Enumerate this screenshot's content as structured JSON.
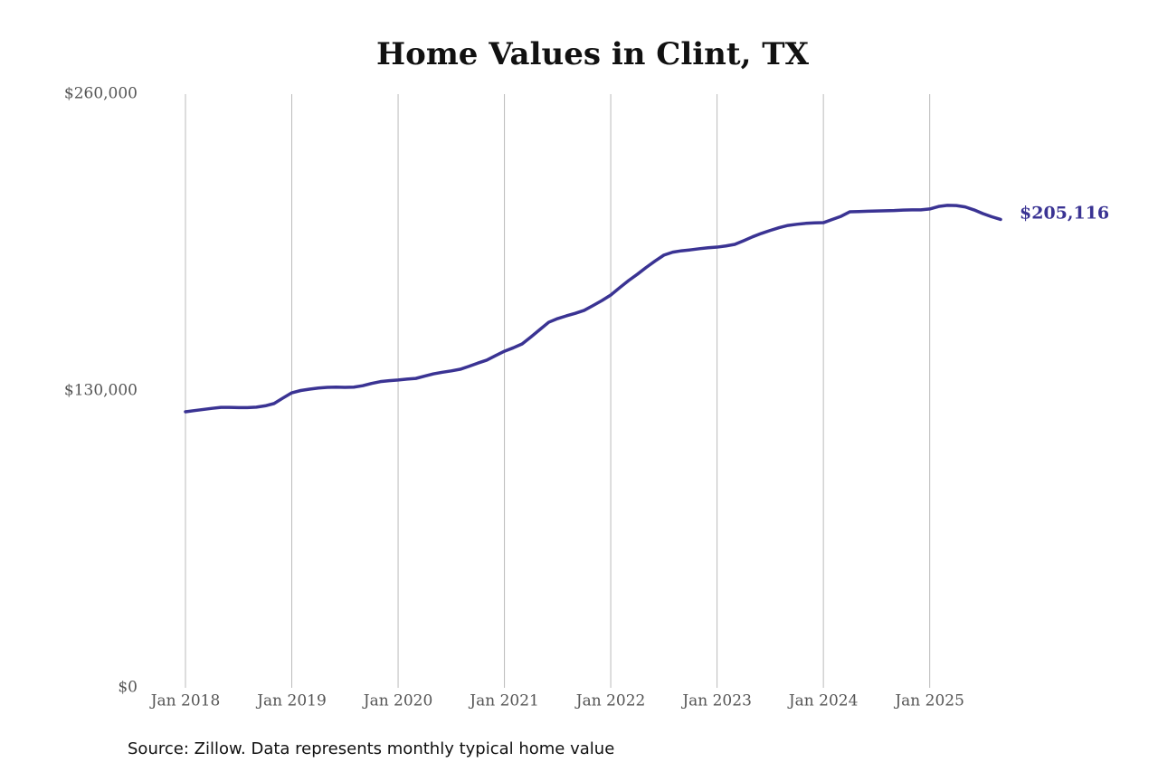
{
  "chart_data": {
    "type": "line",
    "title": "Home Values in Clint, TX",
    "source": "Source: Zillow. Data represents monthly typical home value",
    "x": [
      "2018-01",
      "2018-02",
      "2018-03",
      "2018-04",
      "2018-05",
      "2018-06",
      "2018-07",
      "2018-08",
      "2018-09",
      "2018-10",
      "2018-11",
      "2018-12",
      "2019-01",
      "2019-02",
      "2019-03",
      "2019-04",
      "2019-05",
      "2019-06",
      "2019-07",
      "2019-08",
      "2019-09",
      "2019-10",
      "2019-11",
      "2019-12",
      "2020-01",
      "2020-02",
      "2020-03",
      "2020-04",
      "2020-05",
      "2020-06",
      "2020-07",
      "2020-08",
      "2020-09",
      "2020-10",
      "2020-11",
      "2020-12",
      "2021-01",
      "2021-02",
      "2021-03",
      "2021-04",
      "2021-05",
      "2021-06",
      "2021-07",
      "2021-08",
      "2021-09",
      "2021-10",
      "2021-11",
      "2021-12",
      "2022-01",
      "2022-02",
      "2022-03",
      "2022-04",
      "2022-05",
      "2022-06",
      "2022-07",
      "2022-08",
      "2022-09",
      "2022-10",
      "2022-11",
      "2022-12",
      "2023-01",
      "2023-02",
      "2023-03",
      "2023-04",
      "2023-05",
      "2023-06",
      "2023-07",
      "2023-08",
      "2023-09",
      "2023-10",
      "2023-11",
      "2023-12",
      "2024-01",
      "2024-02",
      "2024-03",
      "2024-04",
      "2024-05",
      "2024-06",
      "2024-07",
      "2024-08",
      "2024-09",
      "2024-10",
      "2024-11",
      "2024-12",
      "2025-01",
      "2025-02",
      "2025-03",
      "2025-04",
      "2025-05",
      "2025-06",
      "2025-07",
      "2025-08",
      "2025-09"
    ],
    "series": [
      {
        "color": "#3a3393",
        "values": [
          120900,
          121400,
          121900,
          122400,
          122800,
          122800,
          122700,
          122700,
          122900,
          123500,
          124500,
          126900,
          129200,
          130200,
          130800,
          131300,
          131600,
          131700,
          131600,
          131700,
          132300,
          133300,
          134100,
          134500,
          134800,
          135200,
          135500,
          136500,
          137500,
          138200,
          138800,
          139500,
          140800,
          142200,
          143500,
          145500,
          147400,
          148900,
          150600,
          153700,
          156900,
          160100,
          161700,
          162900,
          164000,
          165300,
          167400,
          169600,
          172000,
          175200,
          178300,
          181100,
          184100,
          186900,
          189500,
          190800,
          191400,
          191800,
          192300,
          192700,
          193000,
          193500,
          194200,
          195800,
          197500,
          199000,
          200300,
          201500,
          202500,
          203000,
          203400,
          203600,
          203700,
          205100,
          206500,
          208500,
          208600,
          208700,
          208800,
          208900,
          209000,
          209200,
          209300,
          209300,
          209700,
          210800,
          211300,
          211200,
          210600,
          209300,
          207700,
          206300,
          205116
        ],
        "value_labels": [
          null,
          null,
          null,
          null,
          null,
          null,
          null,
          null,
          null,
          null,
          null,
          null,
          null,
          null,
          null,
          null,
          null,
          null,
          null,
          null,
          null,
          null,
          null,
          null,
          null,
          null,
          null,
          null,
          null,
          null,
          null,
          null,
          null,
          null,
          null,
          null,
          null,
          null,
          null,
          null,
          null,
          null,
          null,
          null,
          null,
          null,
          null,
          null,
          null,
          null,
          null,
          null,
          null,
          null,
          null,
          null,
          null,
          null,
          null,
          null,
          null,
          null,
          null,
          null,
          null,
          null,
          null,
          null,
          null,
          null,
          null,
          null,
          null,
          null,
          null,
          null,
          null,
          null,
          null,
          null,
          null,
          null,
          null,
          null,
          null,
          null,
          null,
          null,
          null,
          null,
          null,
          null,
          "$205,116"
        ]
      }
    ],
    "xlim": [
      "2018-01",
      "2025-09"
    ],
    "xticks": [
      {
        "value": "2018-01",
        "label": "Jan 2018"
      },
      {
        "value": "2019-01",
        "label": "Jan 2019"
      },
      {
        "value": "2020-01",
        "label": "Jan 2020"
      },
      {
        "value": "2021-01",
        "label": "Jan 2021"
      },
      {
        "value": "2022-01",
        "label": "Jan 2022"
      },
      {
        "value": "2023-01",
        "label": "Jan 2023"
      },
      {
        "value": "2024-01",
        "label": "Jan 2024"
      },
      {
        "value": "2025-01",
        "label": "Jan 2025"
      }
    ],
    "ylim": [
      0,
      260000
    ],
    "yticks": [
      {
        "value": 0,
        "label": "$0"
      },
      {
        "value": 130000,
        "label": "$130,000"
      },
      {
        "value": 260000,
        "label": "$260,000"
      }
    ],
    "grid": "x"
  }
}
